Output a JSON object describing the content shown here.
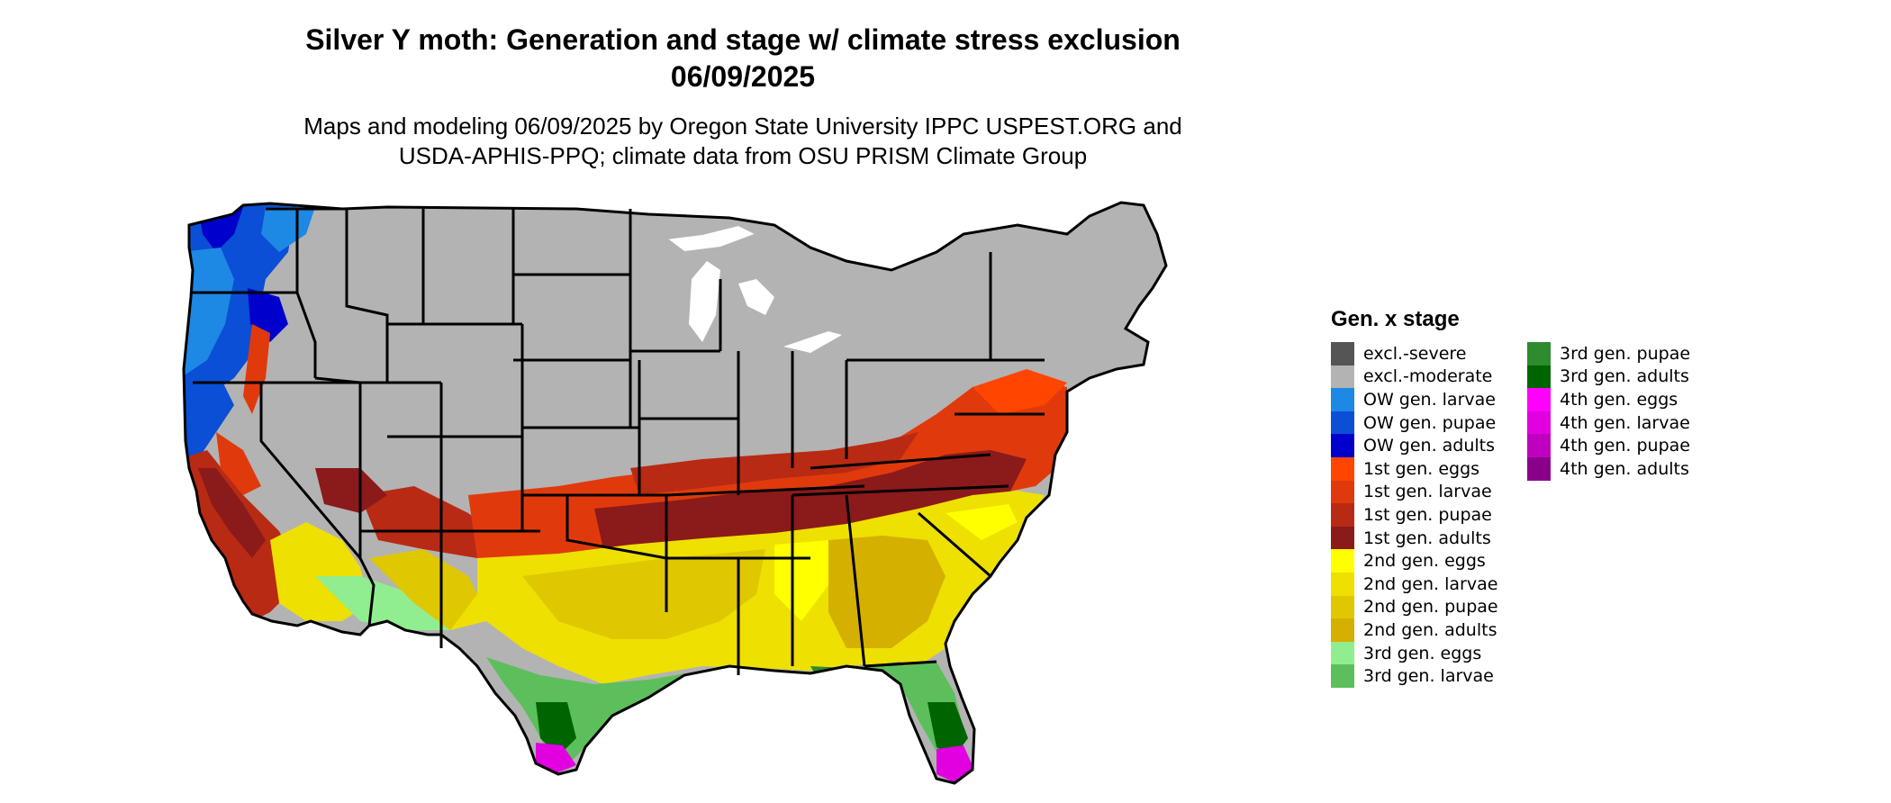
{
  "header": {
    "title_line1": "Silver Y moth: Generation and stage w/ climate stress exclusion",
    "title_line2": "06/09/2025",
    "subtitle_line1": "Maps and modeling 06/09/2025 by Oregon State University IPPC USPEST.ORG and",
    "subtitle_line2": "USDA-APHIS-PPQ; climate data from OSU PRISM Climate Group"
  },
  "legend": {
    "title": "Gen. x stage",
    "items": [
      {
        "label": "excl.-severe",
        "color": "#555555"
      },
      {
        "label": "excl.-moderate",
        "color": "#b3b3b3"
      },
      {
        "label": "OW gen. larvae",
        "color": "#1e88e5"
      },
      {
        "label": "OW gen. pupae",
        "color": "#0a4fd6"
      },
      {
        "label": "OW gen. adults",
        "color": "#0000cc"
      },
      {
        "label": "1st gen. eggs",
        "color": "#ff4500"
      },
      {
        "label": "1st gen. larvae",
        "color": "#e03a0c"
      },
      {
        "label": "1st gen. pupae",
        "color": "#b82a14"
      },
      {
        "label": "1st gen. adults",
        "color": "#8b1a1a"
      },
      {
        "label": "2nd gen. eggs",
        "color": "#ffff00"
      },
      {
        "label": "2nd gen. larvae",
        "color": "#eee000"
      },
      {
        "label": "2nd gen. pupae",
        "color": "#e0c800"
      },
      {
        "label": "2nd gen. adults",
        "color": "#d4b000"
      },
      {
        "label": "3rd gen. eggs",
        "color": "#90ee90"
      },
      {
        "label": "3rd gen. larvae",
        "color": "#5cbf5c"
      },
      {
        "label": "3rd gen. pupae",
        "color": "#2e8b2e"
      },
      {
        "label": "3rd gen. adults",
        "color": "#006400"
      },
      {
        "label": "4th gen. eggs",
        "color": "#ff00ff"
      },
      {
        "label": "4th gen. larvae",
        "color": "#e000e0"
      },
      {
        "label": "4th gen. pupae",
        "color": "#c000c0"
      },
      {
        "label": "4th gen. adults",
        "color": "#8b008b"
      }
    ]
  },
  "map": {
    "region": "contiguous-united-states",
    "state_border_color": "#000000",
    "lake_color": "#ffffff"
  }
}
